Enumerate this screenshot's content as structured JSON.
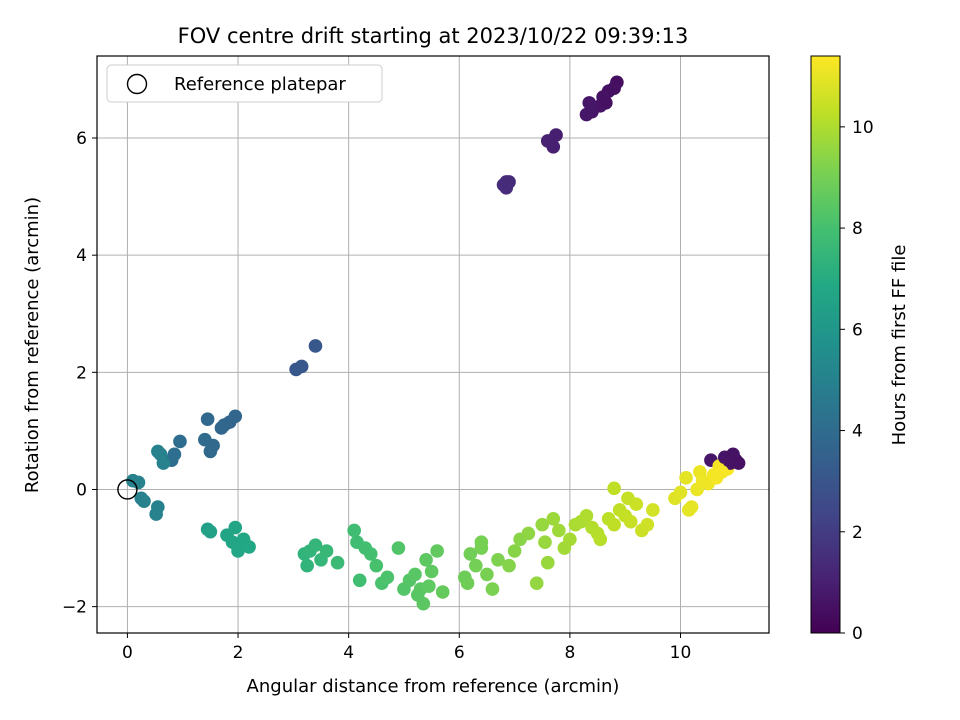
{
  "chart_data": {
    "type": "scatter",
    "title": "FOV centre drift starting at 2023/10/22 09:39:13",
    "xlabel": "Angular distance from reference (arcmin)",
    "ylabel": "Rotation from reference (arcmin)",
    "xlim": [
      -0.55,
      11.6
    ],
    "ylim": [
      -2.45,
      7.4
    ],
    "xticks": [
      0,
      2,
      4,
      6,
      8,
      10
    ],
    "yticks": [
      -2,
      0,
      2,
      4,
      6
    ],
    "xtick_labels": [
      "0",
      "2",
      "4",
      "6",
      "8",
      "10"
    ],
    "ytick_labels": [
      "−2",
      "0",
      "2",
      "4",
      "6"
    ],
    "grid": true,
    "legend": {
      "placement": "top-left",
      "label": "Reference platepar"
    },
    "reference_point": {
      "x": 0,
      "y": 0
    },
    "colorbar": {
      "label": "Hours from first FF file",
      "range": [
        0,
        11.4
      ],
      "ticks": [
        0,
        2,
        4,
        6,
        8,
        10
      ],
      "tick_labels": [
        "0",
        "2",
        "4",
        "6",
        "8",
        "10"
      ],
      "colormap": "viridis"
    },
    "series": [
      {
        "x": [
          8.85,
          8.8,
          8.7,
          8.6,
          8.55,
          8.65,
          8.4,
          8.35,
          8.3,
          7.65,
          7.7,
          7.6,
          7.75,
          6.85,
          6.8,
          6.9,
          6.85,
          3.4,
          3.05,
          3.15,
          1.95,
          1.85,
          1.75,
          1.7,
          1.45,
          1.55,
          1.4,
          1.5,
          0.95,
          0.85,
          0.8,
          0.6,
          0.65,
          0.55,
          0.2,
          0.1,
          0.3,
          0.25,
          0.55,
          0.52,
          1.45,
          1.5,
          1.8,
          1.9,
          2.0,
          1.95,
          2.1,
          2.2,
          3.2,
          3.3,
          3.4,
          3.5,
          3.25,
          3.6,
          3.8,
          4.1,
          4.15,
          4.3,
          4.4,
          4.2,
          4.5,
          4.6,
          4.7,
          4.9,
          5.0,
          5.1,
          5.2,
          5.3,
          5.35,
          5.45,
          5.5,
          5.6,
          5.7,
          5.4,
          5.25,
          6.1,
          6.15,
          6.3,
          6.4,
          6.5,
          6.6,
          6.2,
          6.4,
          6.7,
          6.9,
          7.0,
          7.1,
          7.25,
          7.4,
          7.5,
          7.55,
          7.6,
          7.7,
          7.8,
          7.9,
          8.0,
          8.1,
          8.2,
          8.3,
          8.4,
          8.5,
          8.55,
          8.7,
          8.8,
          8.9,
          9.0,
          9.1,
          9.2,
          9.4,
          9.5,
          9.3,
          9.05,
          8.8,
          9.9,
          10.0,
          10.1,
          10.2,
          10.3,
          10.35,
          10.5,
          10.55,
          10.6,
          10.7,
          10.8,
          10.85,
          10.9,
          10.95,
          11.0,
          11.05,
          10.65,
          10.75,
          10.15,
          10.4
        ],
        "y": [
          6.95,
          6.85,
          6.8,
          6.7,
          6.55,
          6.6,
          6.45,
          6.6,
          6.4,
          5.95,
          5.85,
          5.95,
          6.05,
          5.25,
          5.2,
          5.25,
          5.15,
          2.45,
          2.05,
          2.1,
          1.25,
          1.15,
          1.1,
          1.05,
          1.2,
          0.75,
          0.85,
          0.65,
          0.82,
          0.6,
          0.5,
          0.6,
          0.45,
          0.65,
          0.12,
          0.15,
          -0.2,
          -0.15,
          -0.3,
          -0.42,
          -0.68,
          -0.72,
          -0.78,
          -0.9,
          -1.05,
          -0.65,
          -0.85,
          -0.98,
          -1.1,
          -1.05,
          -0.95,
          -1.2,
          -1.3,
          -1.05,
          -1.25,
          -0.7,
          -0.9,
          -1.0,
          -1.1,
          -1.55,
          -1.3,
          -1.6,
          -1.5,
          -1.0,
          -1.7,
          -1.55,
          -1.45,
          -1.7,
          -1.95,
          -1.65,
          -1.4,
          -1.05,
          -1.75,
          -1.2,
          -1.8,
          -1.5,
          -1.6,
          -1.3,
          -1.0,
          -1.45,
          -1.7,
          -1.1,
          -0.9,
          -1.2,
          -1.3,
          -1.05,
          -0.85,
          -0.75,
          -1.6,
          -0.6,
          -0.9,
          -1.25,
          -0.5,
          -0.7,
          -1.0,
          -0.85,
          -0.6,
          -0.55,
          -0.45,
          -0.65,
          -0.75,
          -0.85,
          -0.5,
          -0.6,
          -0.35,
          -0.45,
          -0.55,
          -0.25,
          -0.6,
          -0.35,
          -0.7,
          -0.15,
          0.02,
          -0.15,
          -0.05,
          0.2,
          -0.3,
          0.0,
          0.3,
          0.1,
          0.5,
          0.25,
          0.4,
          0.55,
          0.35,
          0.45,
          0.6,
          0.5,
          0.45,
          0.2,
          0.3,
          -0.35,
          0.15
        ]
      }
    ]
  }
}
